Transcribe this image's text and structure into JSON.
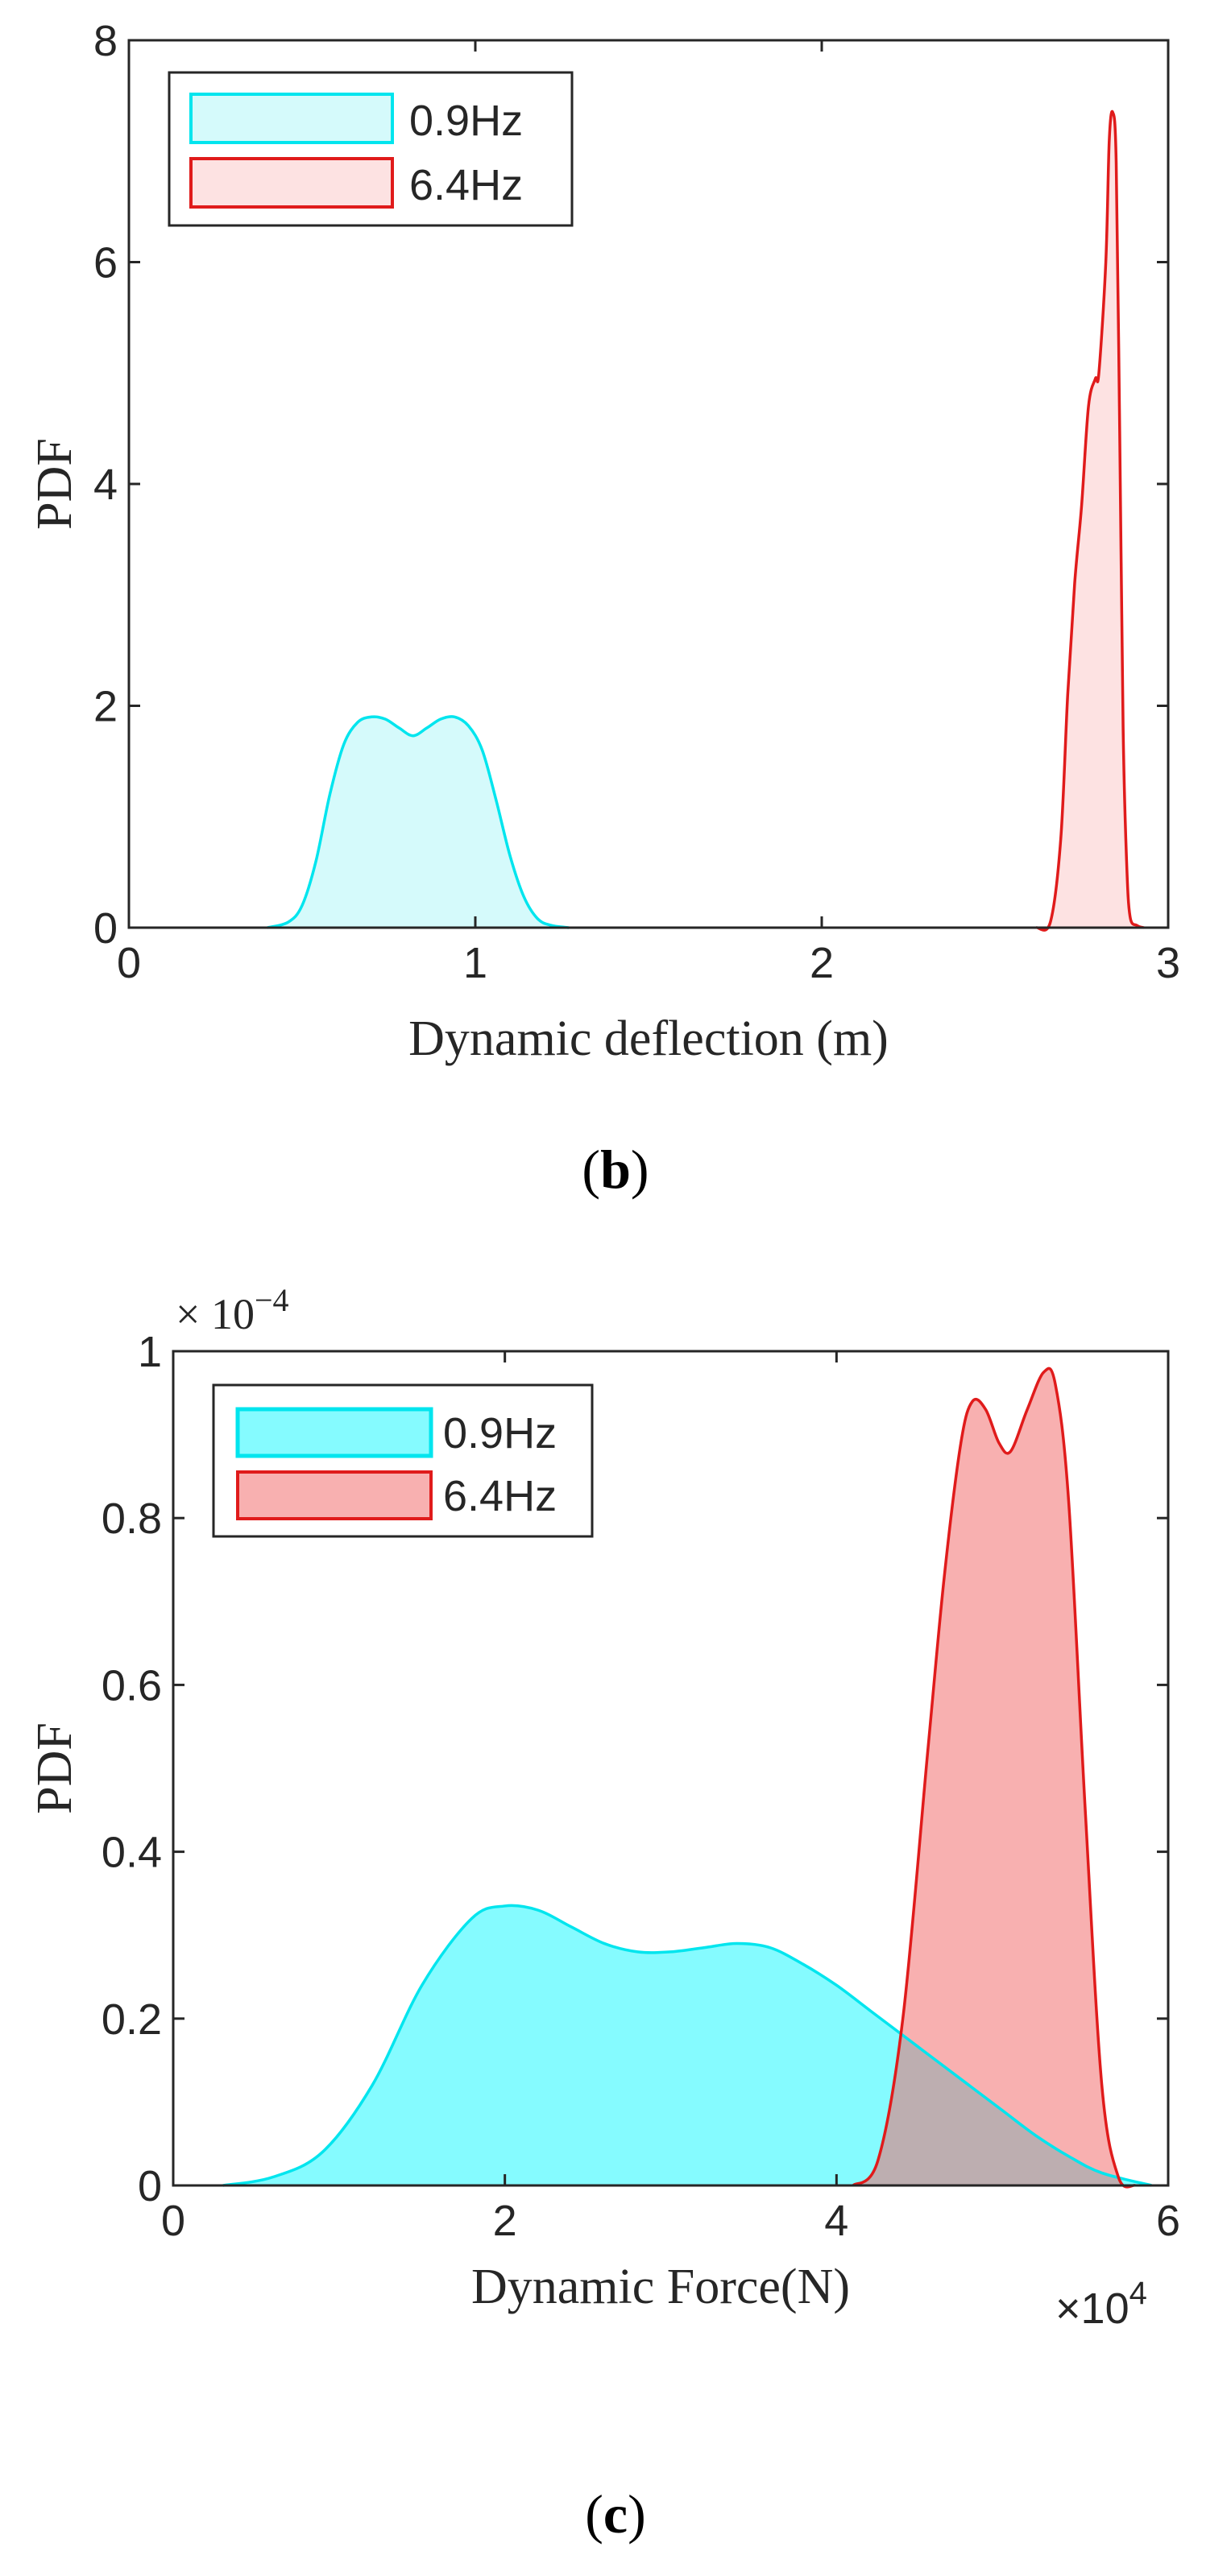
{
  "figure": {
    "panel_b_label_prefix": "(",
    "panel_b_label_letter": "b",
    "panel_b_label_suffix": ")",
    "panel_c_label_prefix": "(",
    "panel_c_label_letter": "c",
    "panel_c_label_suffix": ")"
  },
  "chart_data": [
    {
      "id": "b",
      "type": "area",
      "title": "",
      "xlabel": "Dynamic deflection (m)",
      "ylabel": "PDF",
      "xlim": [
        0,
        3
      ],
      "ylim": [
        0,
        8
      ],
      "xticks": [
        0,
        1,
        2,
        3
      ],
      "xtick_labels": [
        "0",
        "1",
        "2",
        "3"
      ],
      "yticks": [
        0,
        2,
        4,
        6,
        8
      ],
      "ytick_labels": [
        "0",
        "2",
        "4",
        "6",
        "8"
      ],
      "grid": false,
      "legend_position": "top-left",
      "series": [
        {
          "name": "0.9Hz",
          "stroke": "#00E5EE",
          "fill": "#D5FAFB",
          "fill_opacity": 1,
          "legend_border": "#00E5EE",
          "x": [
            0.4,
            0.46,
            0.5,
            0.54,
            0.58,
            0.62,
            0.66,
            0.7,
            0.74,
            0.78,
            0.82,
            0.86,
            0.9,
            0.94,
            0.98,
            1.02,
            1.06,
            1.1,
            1.14,
            1.18,
            1.22,
            1.27
          ],
          "y": [
            0.0,
            0.05,
            0.2,
            0.6,
            1.2,
            1.65,
            1.85,
            1.9,
            1.88,
            1.8,
            1.73,
            1.8,
            1.88,
            1.9,
            1.82,
            1.6,
            1.15,
            0.65,
            0.28,
            0.08,
            0.02,
            0.0
          ]
        },
        {
          "name": "6.4Hz",
          "stroke": "#E01B1B",
          "fill": "#FDE2E2",
          "fill_opacity": 1,
          "legend_border": "#E01B1B",
          "x": [
            2.62,
            2.66,
            2.69,
            2.71,
            2.73,
            2.75,
            2.77,
            2.79,
            2.8,
            2.82,
            2.83,
            2.84,
            2.85,
            2.86,
            2.87,
            2.88,
            2.89,
            2.91,
            2.93
          ],
          "y": [
            0.0,
            0.05,
            0.8,
            2.1,
            3.1,
            3.8,
            4.7,
            4.95,
            5.0,
            6.0,
            7.1,
            7.35,
            6.9,
            4.5,
            1.8,
            0.6,
            0.1,
            0.02,
            0.0
          ]
        }
      ]
    },
    {
      "id": "c",
      "type": "area",
      "title": "",
      "xlabel": "Dynamic Force(N)",
      "ylabel": "PDF",
      "x_multiplier_label": "×10",
      "x_multiplier_exponent": "4",
      "y_multiplier_label": "× 10",
      "y_multiplier_exponent": "−4",
      "xlim": [
        0,
        6
      ],
      "ylim": [
        0,
        1
      ],
      "xticks": [
        0,
        2,
        4,
        6
      ],
      "xtick_labels": [
        "0",
        "2",
        "4",
        "6"
      ],
      "yticks": [
        0,
        0.2,
        0.4,
        0.6,
        0.8,
        1
      ],
      "ytick_labels": [
        "0",
        "0.2",
        "0.4",
        "0.6",
        "0.8",
        "1"
      ],
      "grid": false,
      "legend_position": "top-left",
      "series": [
        {
          "name": "0.9Hz",
          "stroke": "#00E5EE",
          "fill": "#00F6FF",
          "fill_opacity": 0.48,
          "legend_border": "#00E5EE",
          "x": [
            0.3,
            0.6,
            0.9,
            1.2,
            1.5,
            1.8,
            2.0,
            2.2,
            2.4,
            2.6,
            2.8,
            3.0,
            3.2,
            3.4,
            3.6,
            3.8,
            4.0,
            4.2,
            4.4,
            4.6,
            4.8,
            5.0,
            5.2,
            5.4,
            5.6,
            5.9
          ],
          "y": [
            0.0,
            0.01,
            0.04,
            0.12,
            0.24,
            0.32,
            0.335,
            0.33,
            0.31,
            0.29,
            0.28,
            0.28,
            0.285,
            0.29,
            0.285,
            0.265,
            0.24,
            0.21,
            0.18,
            0.15,
            0.12,
            0.09,
            0.06,
            0.035,
            0.015,
            0.0
          ]
        },
        {
          "name": "6.4Hz",
          "stroke": "#E01B1B",
          "fill": "#F26868",
          "fill_opacity": 0.52,
          "legend_border": "#E01B1B",
          "x": [
            4.1,
            4.25,
            4.4,
            4.55,
            4.65,
            4.75,
            4.82,
            4.9,
            4.98,
            5.05,
            5.15,
            5.25,
            5.32,
            5.4,
            5.5,
            5.6,
            5.7,
            5.8
          ],
          "y": [
            0.0,
            0.03,
            0.2,
            0.52,
            0.73,
            0.89,
            0.94,
            0.93,
            0.89,
            0.88,
            0.93,
            0.975,
            0.96,
            0.82,
            0.45,
            0.12,
            0.01,
            0.0
          ]
        }
      ]
    }
  ]
}
